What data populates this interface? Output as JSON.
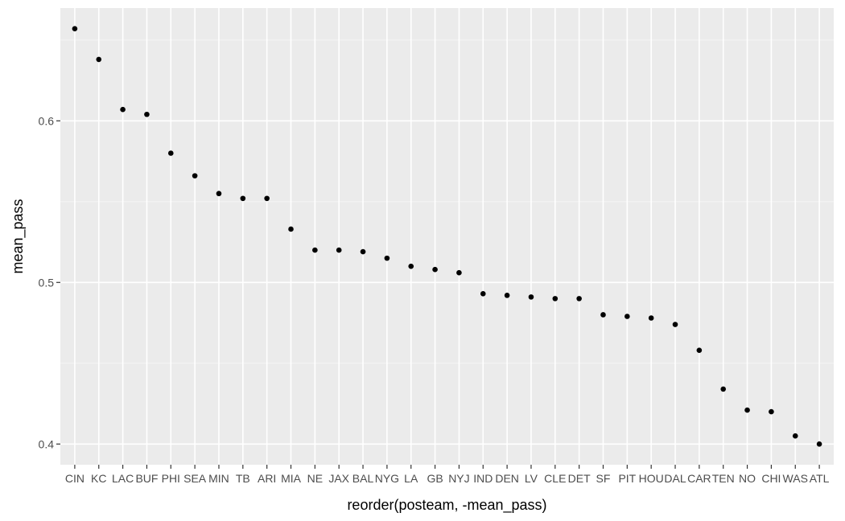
{
  "chart_data": {
    "type": "scatter",
    "title": "",
    "xlabel": "reorder(posteam, -mean_pass)",
    "ylabel": "mean_pass",
    "categories": [
      "CIN",
      "KC",
      "LAC",
      "BUF",
      "PHI",
      "SEA",
      "MIN",
      "TB",
      "ARI",
      "MIA",
      "NE",
      "JAX",
      "BAL",
      "NYG",
      "LA",
      "GB",
      "NYJ",
      "IND",
      "DEN",
      "LV",
      "CLE",
      "DET",
      "SF",
      "PIT",
      "HOU",
      "DAL",
      "CAR",
      "TEN",
      "NO",
      "CHI",
      "WAS",
      "ATL"
    ],
    "values": [
      0.657,
      0.638,
      0.607,
      0.604,
      0.58,
      0.566,
      0.555,
      0.552,
      0.552,
      0.533,
      0.52,
      0.52,
      0.519,
      0.515,
      0.51,
      0.508,
      0.506,
      0.493,
      0.492,
      0.491,
      0.49,
      0.49,
      0.48,
      0.479,
      0.478,
      0.474,
      0.458,
      0.434,
      0.421,
      0.42,
      0.405,
      0.4
    ],
    "y_ticks": [
      0.4,
      0.5,
      0.6
    ],
    "y_tick_labels": [
      "0.4",
      "0.5",
      "0.6"
    ],
    "ylim": [
      0.3872,
      0.6698
    ],
    "grid": true,
    "legend": "none",
    "colors": {
      "panel_background": "#ebebeb",
      "grid_major": "#ffffff",
      "grid_minor": "#f5f5f5",
      "point": "#000000",
      "tick_label": "#4d4d4d",
      "tick_mark": "#333333",
      "axis_title": "#000000"
    }
  }
}
